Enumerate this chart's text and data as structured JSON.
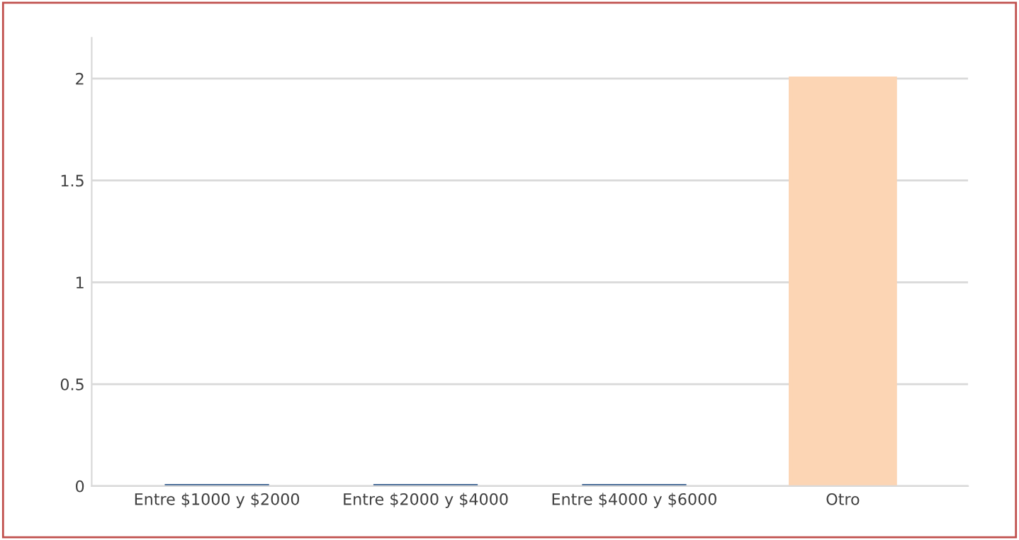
{
  "chart_data": {
    "type": "bar",
    "categories": [
      "Entre $1000 y $2000",
      "Entre $2000 y $4000",
      "Entre $4000 y $6000",
      "Otro"
    ],
    "values": [
      0,
      0,
      0,
      2
    ],
    "colors": [
      "#3a6090",
      "#3a6090",
      "#3a6090",
      "#fcd5b4"
    ],
    "ylim": [
      0,
      2.2
    ],
    "yticks": [
      0,
      0.5,
      1,
      1.5,
      2
    ],
    "grid": "y",
    "legend": false
  }
}
